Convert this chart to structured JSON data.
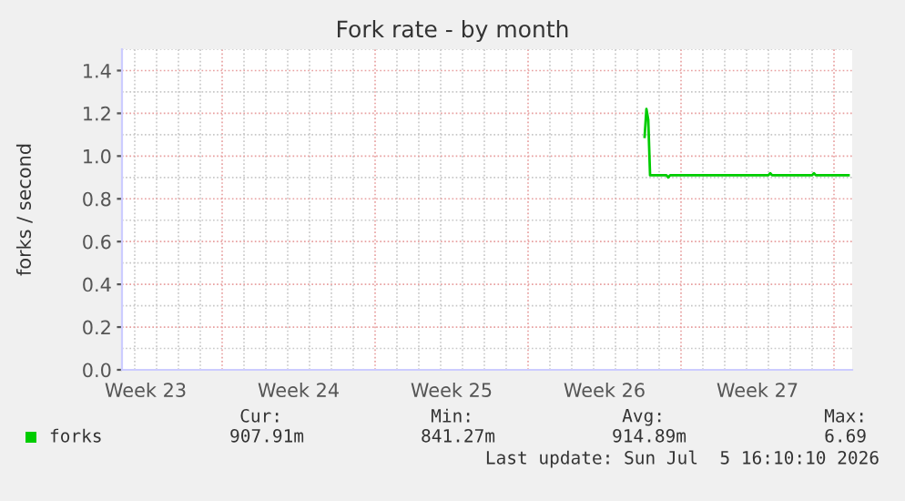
{
  "chart_data": {
    "type": "line",
    "title": "Fork rate - by month",
    "ylabel": "forks / second",
    "series": [
      {
        "name": "forks",
        "color": "#00cc00",
        "x": [
          "2026-06-26T08:00",
          "2026-06-26T10:00",
          "2026-06-26T12:00",
          "2026-06-26T14:00",
          "2026-06-26T16:00",
          "2026-06-27T08:00",
          "2026-06-27T10:00",
          "2026-06-27T12:00",
          "2026-07-02T00:00",
          "2026-07-02T02:00",
          "2026-07-02T04:00",
          "2026-07-04T00:00",
          "2026-07-04T02:00",
          "2026-07-04T04:00",
          "2026-07-05T16:00"
        ],
        "values": [
          1.09,
          1.22,
          1.17,
          0.91,
          0.91,
          0.91,
          0.9,
          0.91,
          0.91,
          0.92,
          0.91,
          0.91,
          0.92,
          0.91,
          0.91
        ]
      }
    ],
    "xlim": [
      "2026-06-02T10:00",
      "2026-07-05T20:00"
    ],
    "xticks": [
      {
        "value": "2026-06-03T12:00",
        "label": "Week 23"
      },
      {
        "value": "2026-06-10T12:00",
        "label": "Week 24"
      },
      {
        "value": "2026-06-17T12:00",
        "label": "Week 25"
      },
      {
        "value": "2026-06-24T12:00",
        "label": "Week 26"
      },
      {
        "value": "2026-07-01T12:00",
        "label": "Week 27"
      }
    ],
    "ylim": [
      0,
      1.5
    ],
    "yticks": [
      {
        "value": 0,
        "label": "0.0"
      },
      {
        "value": 0.2,
        "label": "0.2"
      },
      {
        "value": 0.4,
        "label": "0.4"
      },
      {
        "value": 0.6,
        "label": "0.6"
      },
      {
        "value": 0.8,
        "label": "0.8"
      },
      {
        "value": 1.0,
        "label": "1.0"
      },
      {
        "value": 1.2,
        "label": "1.2"
      },
      {
        "value": 1.4,
        "label": "1.4"
      }
    ],
    "grid": true,
    "legend": "bottom",
    "marker": "none",
    "line_style": "solid",
    "annotations": [
      "Cur:",
      "Min:",
      "Avg:",
      "Max:",
      "907.91m",
      "841.27m",
      "914.89m",
      "6.69",
      "Last update: Sun Jul  5 16:10:10 2026"
    ]
  }
}
